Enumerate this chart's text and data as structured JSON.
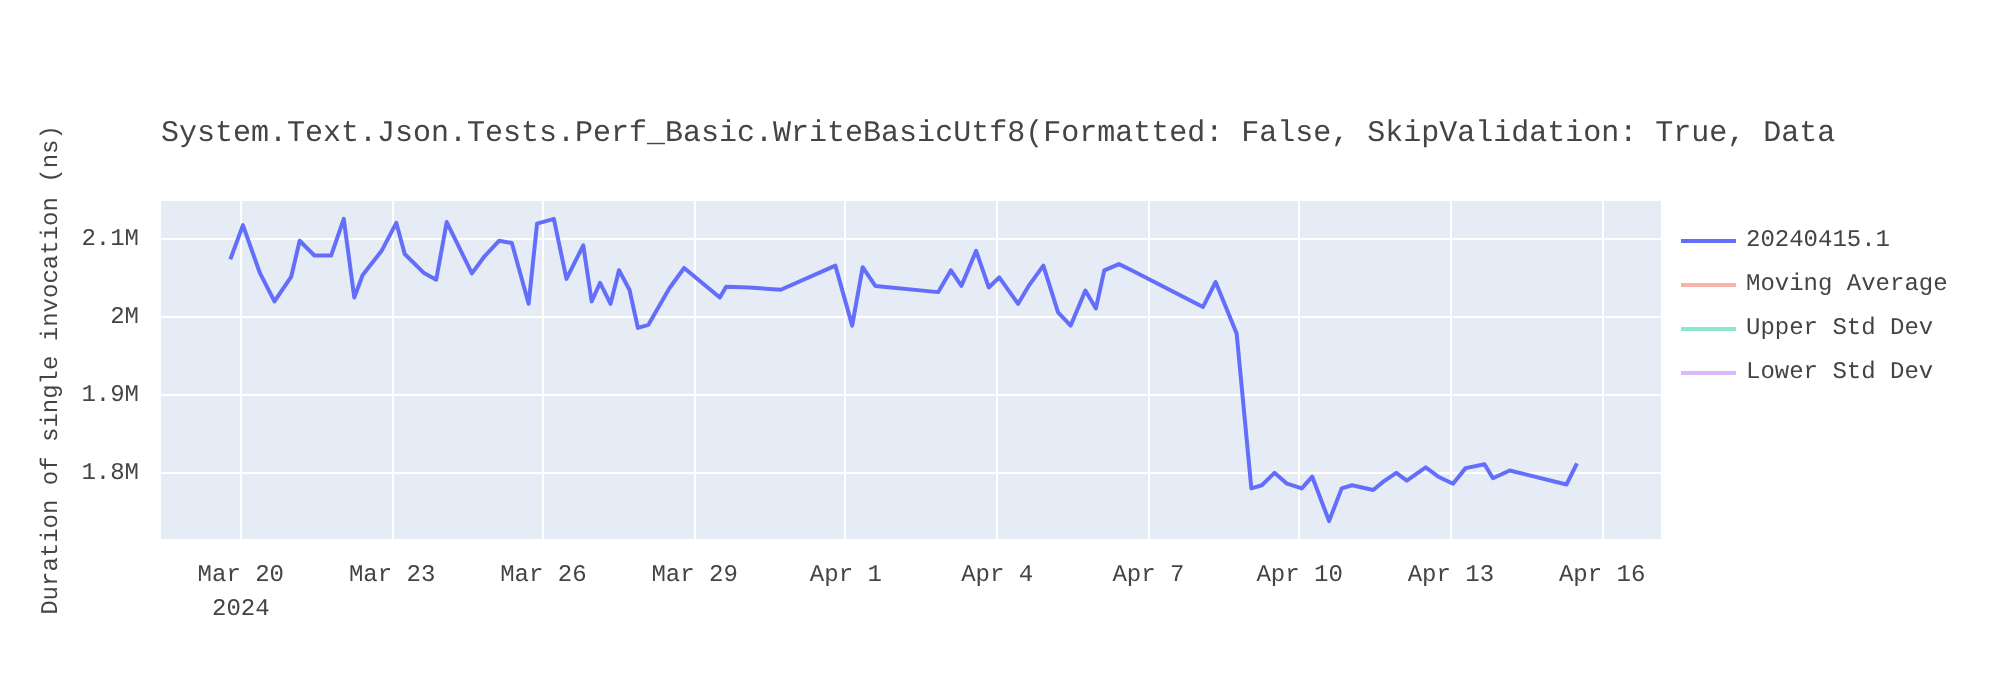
{
  "chart_data": {
    "type": "line",
    "title": "System.Text.Json.Tests.Perf_Basic.WriteBasicUtf8(Formatted: False, SkipValidation: True, Data",
    "ylabel": "Duration of single invocation (ns)",
    "x": [
      "2024-03-19T19:00",
      "2024-03-20T01:00",
      "2024-03-20T09:00",
      "2024-03-20T16:00",
      "2024-03-21T00:00",
      "2024-03-21T04:00",
      "2024-03-21T11:00",
      "2024-03-21T19:00",
      "2024-03-22T01:00",
      "2024-03-22T06:00",
      "2024-03-22T10:00",
      "2024-03-22T19:00",
      "2024-03-23T02:00",
      "2024-03-23T06:00",
      "2024-03-23T15:00",
      "2024-03-23T21:00",
      "2024-03-24T02:00",
      "2024-03-24T14:00",
      "2024-03-24T20:00",
      "2024-03-25T03:00",
      "2024-03-25T09:00",
      "2024-03-25T17:00",
      "2024-03-25T21:00",
      "2024-03-26T05:00",
      "2024-03-26T11:00",
      "2024-03-26T19:00",
      "2024-03-26T23:00",
      "2024-03-27T03:00",
      "2024-03-27T08:00",
      "2024-03-27T12:00",
      "2024-03-27T17:00",
      "2024-03-27T21:00",
      "2024-03-28T02:00",
      "2024-03-28T12:00",
      "2024-03-28T19:00",
      "2024-03-29T12:00",
      "2024-03-29T15:00",
      "2024-03-30T02:00",
      "2024-03-30T17:00",
      "2024-03-31T19:00",
      "2024-04-01T03:00",
      "2024-04-01T08:00",
      "2024-04-01T14:00",
      "2024-04-02T20:00",
      "2024-04-03T02:00",
      "2024-04-03T07:00",
      "2024-04-03T14:00",
      "2024-04-03T20:00",
      "2024-04-04T01:00",
      "2024-04-04T10:00",
      "2024-04-04T15:00",
      "2024-04-04T22:00",
      "2024-04-05T05:00",
      "2024-04-05T11:00",
      "2024-04-05T18:00",
      "2024-04-05T23:00",
      "2024-04-06T03:00",
      "2024-04-06T10:00",
      "2024-04-06T16:00",
      "2024-04-08T02:00",
      "2024-04-08T08:00",
      "2024-04-08T18:00",
      "2024-04-09T01:00",
      "2024-04-09T06:00",
      "2024-04-09T12:00",
      "2024-04-09T18:00",
      "2024-04-10T01:00",
      "2024-04-10T06:00",
      "2024-04-10T14:00",
      "2024-04-10T20:00",
      "2024-04-11T01:00",
      "2024-04-11T11:00",
      "2024-04-11T16:00",
      "2024-04-11T22:00",
      "2024-04-12T03:00",
      "2024-04-12T12:00",
      "2024-04-12T18:00",
      "2024-04-13T01:00",
      "2024-04-13T07:00",
      "2024-04-13T16:00",
      "2024-04-13T20:00",
      "2024-04-14T04:00",
      "2024-04-15T07:00",
      "2024-04-15T12:00"
    ],
    "series": [
      {
        "name": "20240415.1",
        "color": "#636efa",
        "values": [
          2074000,
          2118000,
          2057000,
          2020000,
          2052000,
          2098000,
          2079000,
          2079000,
          2126000,
          2025000,
          2054000,
          2085000,
          2121000,
          2081000,
          2057000,
          2048000,
          2122000,
          2056000,
          2078000,
          2098000,
          2095000,
          2017000,
          2120000,
          2126000,
          2049000,
          2092000,
          2020000,
          2044000,
          2017000,
          2060000,
          2035000,
          1986000,
          1990000,
          2037000,
          2063000,
          2025000,
          2039000,
          2038000,
          2035000,
          2066000,
          1989000,
          2064000,
          2040000,
          2032000,
          2060000,
          2040000,
          2085000,
          2038000,
          2051000,
          2017000,
          2040000,
          2066000,
          2006000,
          1989000,
          2034000,
          2011000,
          2060000,
          2068000,
          2060000,
          2013000,
          2045000,
          1979000,
          1780000,
          1784000,
          1800000,
          1786000,
          1780000,
          1795000,
          1738000,
          1780000,
          1784000,
          1778000,
          1789000,
          1800000,
          1790000,
          1807000,
          1795000,
          1786000,
          1806000,
          1811000,
          1793000,
          1803000,
          1785000,
          1812000
        ]
      },
      {
        "name": "Moving Average",
        "color": "#ef553b",
        "values": [
          null,
          null,
          null,
          null,
          null,
          null,
          null,
          null,
          null,
          null,
          null,
          null,
          null,
          null,
          null,
          null,
          null,
          null,
          null,
          null,
          null,
          null,
          null,
          null,
          null,
          null,
          null,
          null,
          null,
          null,
          null,
          null,
          null,
          null,
          null,
          null,
          null,
          null,
          null,
          null,
          null,
          null,
          null,
          null,
          null,
          null,
          null,
          null,
          null,
          null,
          null,
          null,
          null,
          null,
          null,
          null,
          null,
          null,
          null,
          null,
          null,
          null,
          null,
          null,
          null,
          null,
          null,
          null,
          null,
          null,
          null,
          null,
          null,
          null,
          null,
          null,
          null,
          null,
          null,
          null,
          null,
          null,
          null,
          null
        ]
      },
      {
        "name": "Upper Std Dev",
        "color": "#00cc96",
        "values": [
          null,
          null,
          null,
          null,
          null,
          null,
          null,
          null,
          null,
          null,
          null,
          null,
          null,
          null,
          null,
          null,
          null,
          null,
          null,
          null,
          null,
          null,
          null,
          null,
          null,
          null,
          null,
          null,
          null,
          null,
          null,
          null,
          null,
          null,
          null,
          null,
          null,
          null,
          null,
          null,
          null,
          null,
          null,
          null,
          null,
          null,
          null,
          null,
          null,
          null,
          null,
          null,
          null,
          null,
          null,
          null,
          null,
          null,
          null,
          null,
          null,
          null,
          null,
          null,
          null,
          null,
          null,
          null,
          null,
          null,
          null,
          null,
          null,
          null,
          null,
          null,
          null,
          null,
          null,
          null,
          null,
          null,
          null,
          null
        ]
      },
      {
        "name": "Lower Std Dev",
        "color": "#ab63fa",
        "values": [
          null,
          null,
          null,
          null,
          null,
          null,
          null,
          null,
          null,
          null,
          null,
          null,
          null,
          null,
          null,
          null,
          null,
          null,
          null,
          null,
          null,
          null,
          null,
          null,
          null,
          null,
          null,
          null,
          null,
          null,
          null,
          null,
          null,
          null,
          null,
          null,
          null,
          null,
          null,
          null,
          null,
          null,
          null,
          null,
          null,
          null,
          null,
          null,
          null,
          null,
          null,
          null,
          null,
          null,
          null,
          null,
          null,
          null,
          null,
          null,
          null,
          null,
          null,
          null,
          null,
          null,
          null,
          null,
          null,
          null,
          null,
          null,
          null,
          null,
          null,
          null,
          null,
          null,
          null,
          null,
          null,
          null,
          null,
          null
        ]
      }
    ],
    "xlim": [
      "2024-03-18T10:00",
      "2024-04-17T04:00"
    ],
    "xticks": [
      {
        "value": "2024-03-20",
        "label": "Mar 20\n2024"
      },
      {
        "value": "2024-03-23",
        "label": "Mar 23"
      },
      {
        "value": "2024-03-26",
        "label": "Mar 26"
      },
      {
        "value": "2024-03-29",
        "label": "Mar 29"
      },
      {
        "value": "2024-04-01",
        "label": "Apr 1"
      },
      {
        "value": "2024-04-04",
        "label": "Apr 4"
      },
      {
        "value": "2024-04-07",
        "label": "Apr 7"
      },
      {
        "value": "2024-04-10",
        "label": "Apr 10"
      },
      {
        "value": "2024-04-13",
        "label": "Apr 13"
      },
      {
        "value": "2024-04-16",
        "label": "Apr 16"
      }
    ],
    "ylim": [
      1715000,
      2149000
    ],
    "yticks": [
      {
        "value": 1800000,
        "label": "1.8M"
      },
      {
        "value": 1900000,
        "label": "1.9M"
      },
      {
        "value": 2000000,
        "label": "2M"
      },
      {
        "value": 2100000,
        "label": "2.1M"
      }
    ],
    "grid": true,
    "legend": "top right",
    "line_style": "solid"
  }
}
